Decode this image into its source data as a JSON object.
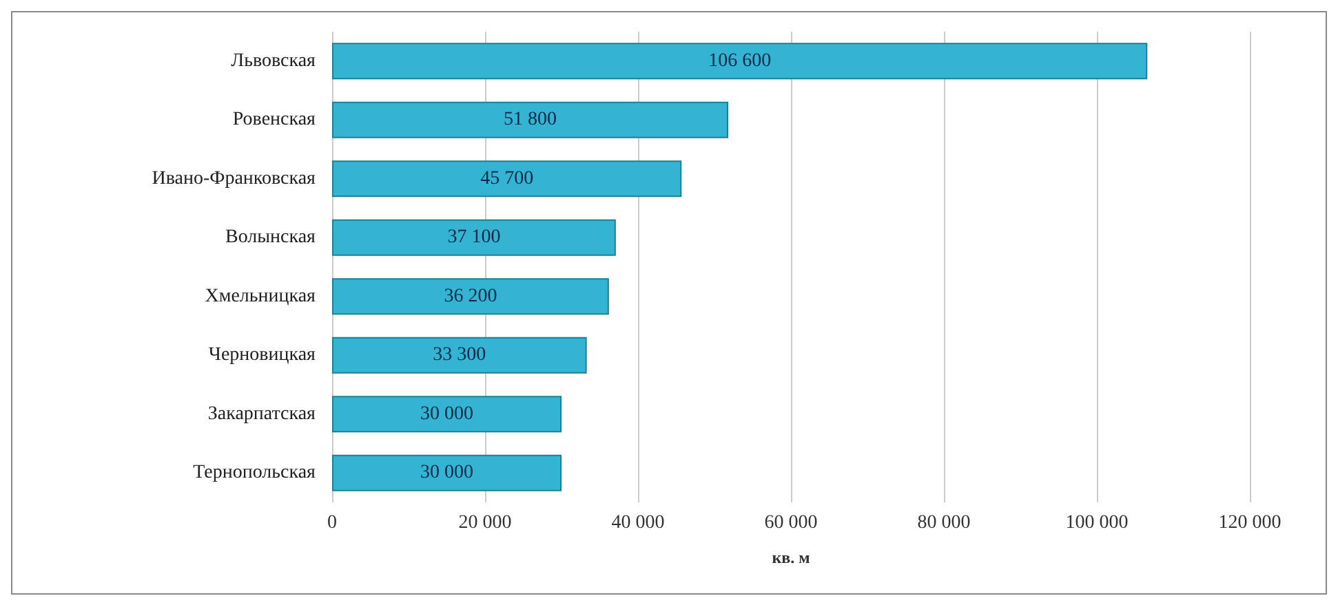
{
  "chart_data": {
    "type": "bar",
    "orientation": "horizontal",
    "xlabel": "кв. м",
    "categories": [
      "Львовская",
      "Ровенская",
      "Ивано-Франковская",
      "Волынская",
      "Хмельницкая",
      "Черновицкая",
      "Закарпатская",
      "Тернопольская"
    ],
    "values": [
      106600,
      51800,
      45700,
      37100,
      36200,
      33300,
      30000,
      30000
    ],
    "value_labels": [
      "106 600",
      "51 800",
      "45 700",
      "37 100",
      "36 200",
      "33 300",
      "30 000",
      "30 000"
    ],
    "color": "#34b4d2",
    "xlim": [
      0,
      120000
    ],
    "xticks": [
      0,
      {
        "value": 20000,
        "label": "20 000"
      },
      {
        "value": 40000,
        "label": "40 000"
      },
      {
        "value": 60000,
        "label": "60 000"
      },
      {
        "value": 80000,
        "label": "80 000"
      },
      {
        "value": 100000,
        "label": "100 000"
      },
      {
        "value": 120000,
        "label": "120 000"
      }
    ],
    "grid": "x"
  }
}
